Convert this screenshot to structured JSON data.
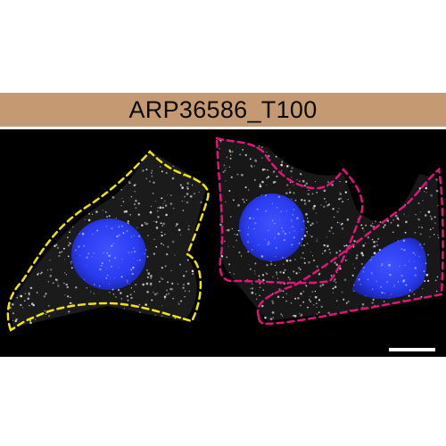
{
  "panel": {
    "title": "ARP36586_T100",
    "band_color": "#c59a72"
  },
  "image": {
    "background_color": "#000000",
    "speckle_color": "#e6e6e6",
    "nucleus_color": "#2a3cf0",
    "outline_colors": {
      "left_cell": "#f2e600",
      "other_cells": "#e0157a"
    }
  },
  "scale_bar": {
    "color": "#ffffff"
  }
}
